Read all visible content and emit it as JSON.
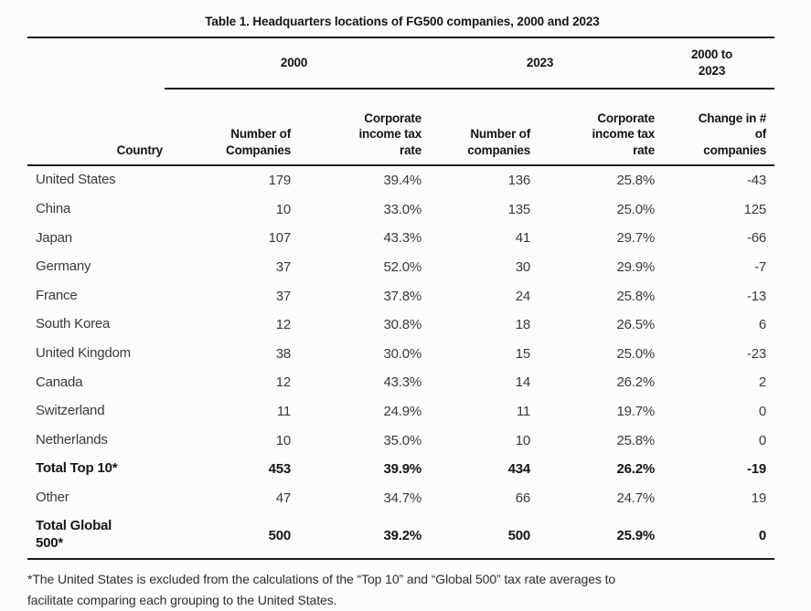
{
  "title": "Table 1. Headquarters locations of FG500 companies, 2000 and 2023",
  "table": {
    "group_headers": [
      "2000",
      "2023",
      "2000 to\n2023"
    ],
    "columns": [
      "Country",
      "Number of\nCompanies",
      "Corporate\nincome tax\nrate",
      "Number of\ncompanies",
      "Corporate\nincome tax\nrate",
      "Change in #\nof\ncompanies"
    ],
    "rows": [
      {
        "country": "United States",
        "n2000": "179",
        "t2000": "39.4%",
        "n2023": "136",
        "t2023": "25.8%",
        "change": "-43"
      },
      {
        "country": "China",
        "n2000": "10",
        "t2000": "33.0%",
        "n2023": "135",
        "t2023": "25.0%",
        "change": "125"
      },
      {
        "country": "Japan",
        "n2000": "107",
        "t2000": "43.3%",
        "n2023": "41",
        "t2023": "29.7%",
        "change": "-66"
      },
      {
        "country": "Germany",
        "n2000": "37",
        "t2000": "52.0%",
        "n2023": "30",
        "t2023": "29.9%",
        "change": "-7"
      },
      {
        "country": "France",
        "n2000": "37",
        "t2000": "37.8%",
        "n2023": "24",
        "t2023": "25.8%",
        "change": "-13"
      },
      {
        "country": "South Korea",
        "n2000": "12",
        "t2000": "30.8%",
        "n2023": "18",
        "t2023": "26.5%",
        "change": "6"
      },
      {
        "country": "United Kingdom",
        "n2000": "38",
        "t2000": "30.0%",
        "n2023": "15",
        "t2023": "25.0%",
        "change": "-23"
      },
      {
        "country": "Canada",
        "n2000": "12",
        "t2000": "43.3%",
        "n2023": "14",
        "t2023": "26.2%",
        "change": "2"
      },
      {
        "country": "Switzerland",
        "n2000": "11",
        "t2000": "24.9%",
        "n2023": "11",
        "t2023": "19.7%",
        "change": "0"
      },
      {
        "country": "Netherlands",
        "n2000": "10",
        "t2000": "35.0%",
        "n2023": "10",
        "t2023": "25.8%",
        "change": "0"
      },
      {
        "country": "Total Top 10*",
        "n2000": "453",
        "t2000": "39.9%",
        "n2023": "434",
        "t2023": "26.2%",
        "change": "-19"
      },
      {
        "country": "Other",
        "n2000": "47",
        "t2000": "34.7%",
        "n2023": "66",
        "t2023": "24.7%",
        "change": "19"
      },
      {
        "country": "Total Global\n500*",
        "n2000": "500",
        "t2000": "39.2%",
        "n2023": "500",
        "t2023": "25.9%",
        "change": "0"
      }
    ]
  },
  "footnote": "*The United States is excluded from the calculations of the “Top 10” and “Global 500” tax rate averages to\nfacilitate comparing each grouping to the United States.",
  "colors": {
    "rule": "#1a1a1a",
    "header_text": "#141414",
    "body_text": "#3a3a3a",
    "background": "#fcfcfc"
  },
  "chart_data": {
    "type": "table",
    "title": "Table 1. Headquarters locations of FG500 companies, 2000 and 2023",
    "column_groups": [
      "2000",
      "2023",
      "2000 to 2023"
    ],
    "columns": [
      "Country",
      "Number of Companies (2000)",
      "Corporate income tax rate (2000)",
      "Number of companies (2023)",
      "Corporate income tax rate (2023)",
      "Change in # of companies (2000 to 2023)"
    ],
    "rows": [
      [
        "United States",
        179,
        "39.4%",
        136,
        "25.8%",
        -43
      ],
      [
        "China",
        10,
        "33.0%",
        135,
        "25.0%",
        125
      ],
      [
        "Japan",
        107,
        "43.3%",
        41,
        "29.7%",
        -66
      ],
      [
        "Germany",
        37,
        "52.0%",
        30,
        "29.9%",
        -7
      ],
      [
        "France",
        37,
        "37.8%",
        24,
        "25.8%",
        -13
      ],
      [
        "South Korea",
        12,
        "30.8%",
        18,
        "26.5%",
        6
      ],
      [
        "United Kingdom",
        38,
        "30.0%",
        15,
        "25.0%",
        -23
      ],
      [
        "Canada",
        12,
        "43.3%",
        14,
        "26.2%",
        2
      ],
      [
        "Switzerland",
        11,
        "24.9%",
        11,
        "19.7%",
        0
      ],
      [
        "Netherlands",
        10,
        "35.0%",
        10,
        "25.8%",
        0
      ],
      [
        "Total Top 10*",
        453,
        "39.9%",
        434,
        "26.2%",
        -19
      ],
      [
        "Other",
        47,
        "34.7%",
        66,
        "24.7%",
        19
      ],
      [
        "Total Global 500*",
        500,
        "39.2%",
        500,
        "25.9%",
        0
      ]
    ],
    "footnote": "*The United States is excluded from the calculations of the “Top 10” and “Global 500” tax rate averages to facilitate comparing each grouping to the United States."
  }
}
